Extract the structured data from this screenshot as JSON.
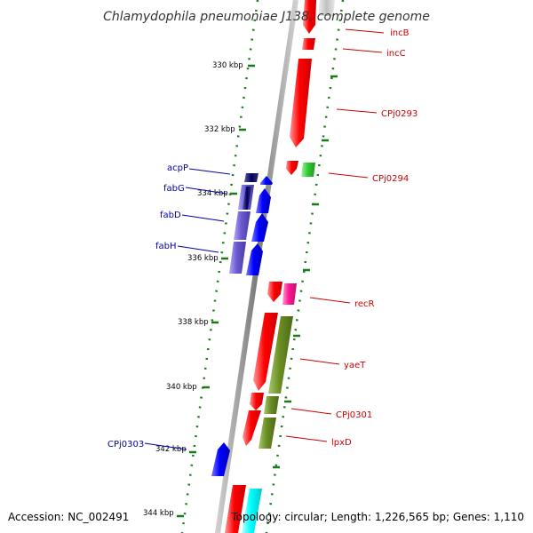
{
  "title": "Chlamydophila pneumoniae J138, complete genome",
  "accession": "Accession: NC_002491",
  "summary": "Topology: circular; Length: 1,226,565 bp; Genes: 1,110",
  "colors": {
    "backbone": "#808080",
    "tick_dots": "#1a7a1a",
    "forward_red": "#ff0000",
    "reverse_blue": "#0000ff",
    "label_red": "#cc0000",
    "label_blue": "#0000aa",
    "green": "#33cc33",
    "olive": "#6b8e23",
    "pink": "#ff1493",
    "purple": "#6a5acd",
    "cyan": "#00ffff"
  },
  "kbp_ticks": [
    "330 kbp",
    "332 kbp",
    "334 kbp",
    "336 kbp",
    "338 kbp",
    "340 kbp",
    "342 kbp",
    "344 kbp"
  ],
  "genes_forward": [
    "incB",
    "incC",
    "CPj0293",
    "CPj0294",
    "recR",
    "yaeT",
    "CPj0301",
    "lpxD"
  ],
  "genes_reverse": [
    "acpP",
    "fabG",
    "fabD",
    "fabH",
    "CPj0303"
  ]
}
